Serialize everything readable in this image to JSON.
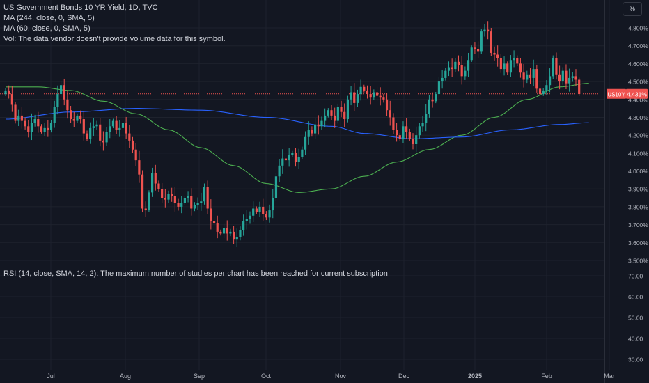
{
  "legend": {
    "title": "US Government Bonds 10 YR Yield, 1D, TVC",
    "ma244": "MA (244, close, 0, SMA, 5)",
    "ma60": "MA (60, close, 0, SMA, 5)",
    "volume_note": "Vol: The data vendor doesn't provide volume data for this symbol.",
    "rsi_note": "RSI (14, close, SMA, 14, 2): The maximum number of studies per chart has been reached for current subscription"
  },
  "unit_button": "%",
  "colors": {
    "background": "#131722",
    "up": "#26a69a",
    "down": "#ef5350",
    "ma60": "#4caf50",
    "ma244": "#2962ff",
    "grid": "#1e222d",
    "text": "#d1d4dc",
    "axis_text": "#b2b5be"
  },
  "chart_data": [
    {
      "type": "candlestick",
      "symbol": "US10Y",
      "last_value": 4.431,
      "last_label": "US10Y",
      "last_value_label": "4.431%",
      "y_unit": "%",
      "ylim": [
        3.47,
        4.87
      ],
      "y_ticks": [
        "4.800%",
        "4.700%",
        "4.600%",
        "4.500%",
        "4.400%",
        "4.300%",
        "4.200%",
        "4.100%",
        "4.000%",
        "3.900%",
        "3.800%",
        "3.700%",
        "3.600%",
        "3.500%"
      ],
      "x_ticks": [
        "Jul",
        "Aug",
        "Sep",
        "Oct",
        "Nov",
        "Dec",
        "2025",
        "Feb",
        "Mar"
      ],
      "closes": [
        4.45,
        4.43,
        4.37,
        4.28,
        4.31,
        4.28,
        4.25,
        4.22,
        4.27,
        4.29,
        4.25,
        4.22,
        4.24,
        4.23,
        4.27,
        4.36,
        4.43,
        4.48,
        4.4,
        4.34,
        4.29,
        4.28,
        4.31,
        4.29,
        4.21,
        4.18,
        4.24,
        4.25,
        4.26,
        4.17,
        4.16,
        4.22,
        4.25,
        4.28,
        4.23,
        4.24,
        4.27,
        4.21,
        4.17,
        4.12,
        4.06,
        3.98,
        3.79,
        3.78,
        3.88,
        3.99,
        3.93,
        3.9,
        3.85,
        3.84,
        3.87,
        3.86,
        3.82,
        3.8,
        3.82,
        3.85,
        3.86,
        3.79,
        3.81,
        3.82,
        3.83,
        3.91,
        3.79,
        3.72,
        3.71,
        3.66,
        3.65,
        3.68,
        3.65,
        3.66,
        3.62,
        3.63,
        3.67,
        3.72,
        3.73,
        3.75,
        3.79,
        3.77,
        3.8,
        3.76,
        3.74,
        3.78,
        3.85,
        3.97,
        4.03,
        4.07,
        4.06,
        4.09,
        4.1,
        4.05,
        4.08,
        4.12,
        4.19,
        4.23,
        4.21,
        4.26,
        4.25,
        4.28,
        4.31,
        4.34,
        4.31,
        4.28,
        4.36,
        4.33,
        4.29,
        4.4,
        4.44,
        4.38,
        4.43,
        4.47,
        4.45,
        4.43,
        4.41,
        4.44,
        4.42,
        4.41,
        4.4,
        4.34,
        4.3,
        4.23,
        4.2,
        4.18,
        4.25,
        4.22,
        4.18,
        4.15,
        4.2,
        4.25,
        4.27,
        4.32,
        4.4,
        4.39,
        4.43,
        4.5,
        4.52,
        4.56,
        4.58,
        4.57,
        4.61,
        4.59,
        4.53,
        4.56,
        4.62,
        4.69,
        4.68,
        4.67,
        4.78,
        4.79,
        4.78,
        4.66,
        4.65,
        4.63,
        4.57,
        4.6,
        4.55,
        4.62,
        4.63,
        4.6,
        4.55,
        4.51,
        4.54,
        4.52,
        4.57,
        4.46,
        4.43,
        4.45,
        4.48,
        4.53,
        4.63,
        4.54,
        4.5,
        4.56,
        4.49,
        4.52,
        4.53,
        4.51,
        4.43
      ],
      "series": [
        {
          "name": "MA (60, close, 0, SMA, 5)",
          "color": "#4caf50",
          "from_index": 0,
          "anchors": [
            [
              0,
              4.47
            ],
            [
              10,
              4.47
            ],
            [
              20,
              4.45
            ],
            [
              30,
              4.39
            ],
            [
              40,
              4.32
            ],
            [
              50,
              4.23
            ],
            [
              60,
              4.13
            ],
            [
              70,
              4.03
            ],
            [
              80,
              3.93
            ],
            [
              90,
              3.88
            ],
            [
              100,
              3.9
            ],
            [
              110,
              3.97
            ],
            [
              120,
              4.05
            ],
            [
              130,
              4.12
            ],
            [
              140,
              4.2
            ],
            [
              150,
              4.3
            ],
            [
              160,
              4.4
            ],
            [
              170,
              4.47
            ],
            [
              179,
              4.49
            ]
          ]
        },
        {
          "name": "MA (244, close, 0, SMA, 5)",
          "color": "#2962ff",
          "from_index": 0,
          "anchors": [
            [
              0,
              4.29
            ],
            [
              20,
              4.33
            ],
            [
              40,
              4.35
            ],
            [
              60,
              4.34
            ],
            [
              80,
              4.3
            ],
            [
              100,
              4.25
            ],
            [
              110,
              4.21
            ],
            [
              125,
              4.18
            ],
            [
              140,
              4.19
            ],
            [
              155,
              4.23
            ],
            [
              170,
              4.26
            ],
            [
              179,
              4.27
            ]
          ]
        }
      ]
    },
    {
      "type": "line",
      "title": "RSI (14, close, SMA, 14, 2)",
      "ylim": [
        26,
        75
      ],
      "y_ticks": [
        "70.00",
        "60.00",
        "50.00",
        "40.00",
        "30.00"
      ],
      "series": []
    }
  ]
}
